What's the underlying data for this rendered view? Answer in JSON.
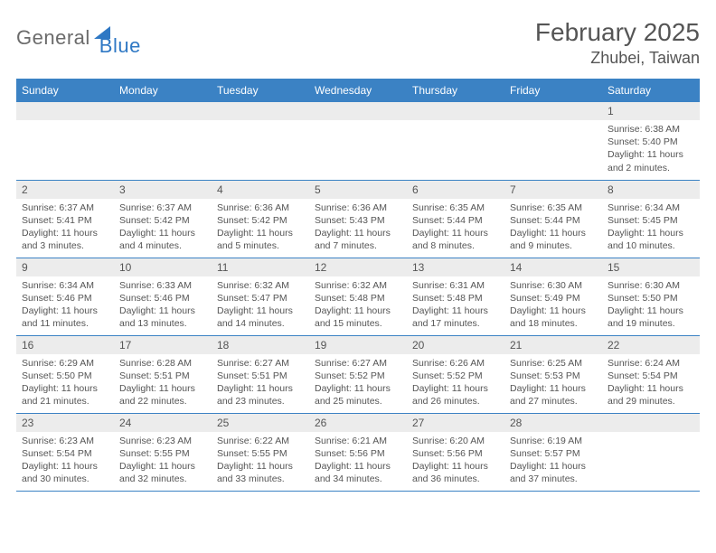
{
  "logo": {
    "text1": "General",
    "text2": "Blue"
  },
  "title": "February 2025",
  "location": "Zhubei, Taiwan",
  "colors": {
    "header_bg": "#3b82c4",
    "header_text": "#ffffff",
    "daynum_bg": "#ececec",
    "text": "#555555",
    "border": "#3b82c4",
    "logo_gray": "#6b6b6b",
    "logo_blue": "#2f78c4"
  },
  "weekdays": [
    "Sunday",
    "Monday",
    "Tuesday",
    "Wednesday",
    "Thursday",
    "Friday",
    "Saturday"
  ],
  "weeks": [
    [
      {
        "n": "",
        "sr": "",
        "ss": "",
        "dl": ""
      },
      {
        "n": "",
        "sr": "",
        "ss": "",
        "dl": ""
      },
      {
        "n": "",
        "sr": "",
        "ss": "",
        "dl": ""
      },
      {
        "n": "",
        "sr": "",
        "ss": "",
        "dl": ""
      },
      {
        "n": "",
        "sr": "",
        "ss": "",
        "dl": ""
      },
      {
        "n": "",
        "sr": "",
        "ss": "",
        "dl": ""
      },
      {
        "n": "1",
        "sr": "Sunrise: 6:38 AM",
        "ss": "Sunset: 5:40 PM",
        "dl": "Daylight: 11 hours and 2 minutes."
      }
    ],
    [
      {
        "n": "2",
        "sr": "Sunrise: 6:37 AM",
        "ss": "Sunset: 5:41 PM",
        "dl": "Daylight: 11 hours and 3 minutes."
      },
      {
        "n": "3",
        "sr": "Sunrise: 6:37 AM",
        "ss": "Sunset: 5:42 PM",
        "dl": "Daylight: 11 hours and 4 minutes."
      },
      {
        "n": "4",
        "sr": "Sunrise: 6:36 AM",
        "ss": "Sunset: 5:42 PM",
        "dl": "Daylight: 11 hours and 5 minutes."
      },
      {
        "n": "5",
        "sr": "Sunrise: 6:36 AM",
        "ss": "Sunset: 5:43 PM",
        "dl": "Daylight: 11 hours and 7 minutes."
      },
      {
        "n": "6",
        "sr": "Sunrise: 6:35 AM",
        "ss": "Sunset: 5:44 PM",
        "dl": "Daylight: 11 hours and 8 minutes."
      },
      {
        "n": "7",
        "sr": "Sunrise: 6:35 AM",
        "ss": "Sunset: 5:44 PM",
        "dl": "Daylight: 11 hours and 9 minutes."
      },
      {
        "n": "8",
        "sr": "Sunrise: 6:34 AM",
        "ss": "Sunset: 5:45 PM",
        "dl": "Daylight: 11 hours and 10 minutes."
      }
    ],
    [
      {
        "n": "9",
        "sr": "Sunrise: 6:34 AM",
        "ss": "Sunset: 5:46 PM",
        "dl": "Daylight: 11 hours and 11 minutes."
      },
      {
        "n": "10",
        "sr": "Sunrise: 6:33 AM",
        "ss": "Sunset: 5:46 PM",
        "dl": "Daylight: 11 hours and 13 minutes."
      },
      {
        "n": "11",
        "sr": "Sunrise: 6:32 AM",
        "ss": "Sunset: 5:47 PM",
        "dl": "Daylight: 11 hours and 14 minutes."
      },
      {
        "n": "12",
        "sr": "Sunrise: 6:32 AM",
        "ss": "Sunset: 5:48 PM",
        "dl": "Daylight: 11 hours and 15 minutes."
      },
      {
        "n": "13",
        "sr": "Sunrise: 6:31 AM",
        "ss": "Sunset: 5:48 PM",
        "dl": "Daylight: 11 hours and 17 minutes."
      },
      {
        "n": "14",
        "sr": "Sunrise: 6:30 AM",
        "ss": "Sunset: 5:49 PM",
        "dl": "Daylight: 11 hours and 18 minutes."
      },
      {
        "n": "15",
        "sr": "Sunrise: 6:30 AM",
        "ss": "Sunset: 5:50 PM",
        "dl": "Daylight: 11 hours and 19 minutes."
      }
    ],
    [
      {
        "n": "16",
        "sr": "Sunrise: 6:29 AM",
        "ss": "Sunset: 5:50 PM",
        "dl": "Daylight: 11 hours and 21 minutes."
      },
      {
        "n": "17",
        "sr": "Sunrise: 6:28 AM",
        "ss": "Sunset: 5:51 PM",
        "dl": "Daylight: 11 hours and 22 minutes."
      },
      {
        "n": "18",
        "sr": "Sunrise: 6:27 AM",
        "ss": "Sunset: 5:51 PM",
        "dl": "Daylight: 11 hours and 23 minutes."
      },
      {
        "n": "19",
        "sr": "Sunrise: 6:27 AM",
        "ss": "Sunset: 5:52 PM",
        "dl": "Daylight: 11 hours and 25 minutes."
      },
      {
        "n": "20",
        "sr": "Sunrise: 6:26 AM",
        "ss": "Sunset: 5:52 PM",
        "dl": "Daylight: 11 hours and 26 minutes."
      },
      {
        "n": "21",
        "sr": "Sunrise: 6:25 AM",
        "ss": "Sunset: 5:53 PM",
        "dl": "Daylight: 11 hours and 27 minutes."
      },
      {
        "n": "22",
        "sr": "Sunrise: 6:24 AM",
        "ss": "Sunset: 5:54 PM",
        "dl": "Daylight: 11 hours and 29 minutes."
      }
    ],
    [
      {
        "n": "23",
        "sr": "Sunrise: 6:23 AM",
        "ss": "Sunset: 5:54 PM",
        "dl": "Daylight: 11 hours and 30 minutes."
      },
      {
        "n": "24",
        "sr": "Sunrise: 6:23 AM",
        "ss": "Sunset: 5:55 PM",
        "dl": "Daylight: 11 hours and 32 minutes."
      },
      {
        "n": "25",
        "sr": "Sunrise: 6:22 AM",
        "ss": "Sunset: 5:55 PM",
        "dl": "Daylight: 11 hours and 33 minutes."
      },
      {
        "n": "26",
        "sr": "Sunrise: 6:21 AM",
        "ss": "Sunset: 5:56 PM",
        "dl": "Daylight: 11 hours and 34 minutes."
      },
      {
        "n": "27",
        "sr": "Sunrise: 6:20 AM",
        "ss": "Sunset: 5:56 PM",
        "dl": "Daylight: 11 hours and 36 minutes."
      },
      {
        "n": "28",
        "sr": "Sunrise: 6:19 AM",
        "ss": "Sunset: 5:57 PM",
        "dl": "Daylight: 11 hours and 37 minutes."
      },
      {
        "n": "",
        "sr": "",
        "ss": "",
        "dl": ""
      }
    ]
  ]
}
